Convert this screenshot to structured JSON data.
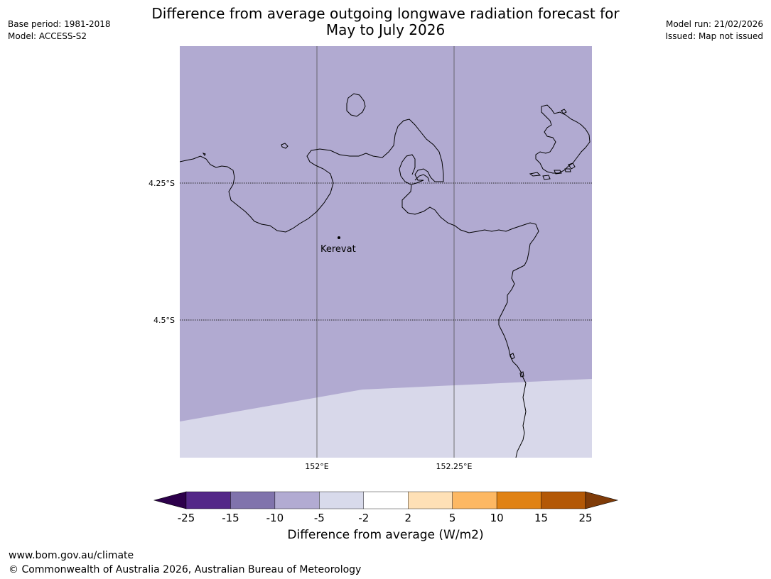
{
  "header": {
    "title_line1": "Difference from average outgoing longwave radiation forecast for",
    "title_line2": "May to July 2026",
    "base_period": "Base period: 1981-2018",
    "model": "Model: ACCESS-S2",
    "model_run": "Model run: 21/02/2026",
    "issued": "Issued: Map not issued"
  },
  "map": {
    "lat_labels": [
      "4.25°S",
      "4.5°S"
    ],
    "lon_labels": [
      "152°E",
      "152.25°E"
    ],
    "place": "Kerevat",
    "region_colors": {
      "main": "#b1aad1",
      "lower": "#d8d8ea",
      "coast": "#000000"
    }
  },
  "colorbar": {
    "title": "Difference from average (W/m2)",
    "ticks": [
      "-25",
      "-15",
      "-10",
      "-5",
      "-2",
      "2",
      "5",
      "10",
      "15",
      "25"
    ],
    "colors": [
      "#2d004b",
      "#542788",
      "#8073ac",
      "#b2abd2",
      "#d8daeb",
      "#ffffff",
      "#fee0b6",
      "#fdb863",
      "#e08214",
      "#b35806",
      "#7f3b08"
    ]
  },
  "footer": {
    "url": "www.bom.gov.au/climate",
    "copyright": "© Commonwealth of Australia 2026, Australian Bureau of Meteorology"
  }
}
